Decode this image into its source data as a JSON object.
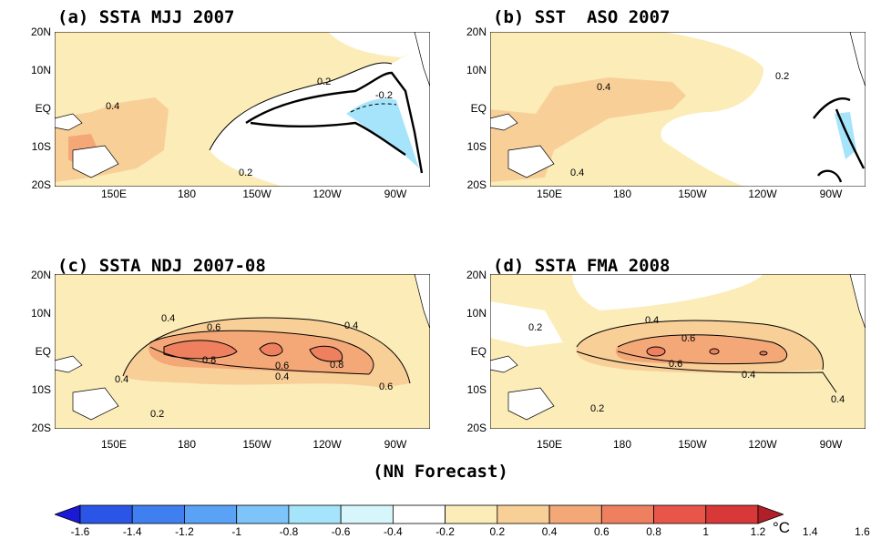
{
  "panels": [
    {
      "id": "a",
      "title": "(a) SSTA MJJ 2007",
      "contour_labels": [
        "0.2",
        "0.4",
        "-0.2",
        "0.2"
      ]
    },
    {
      "id": "b",
      "title": "(b) SST  ASO 2007",
      "contour_labels": [
        "0.4",
        "0.2",
        "0.4"
      ]
    },
    {
      "id": "c",
      "title": "(c) SSTA NDJ 2007-08",
      "contour_labels": [
        "0.4",
        "0.6",
        "0.4",
        "0.8",
        "0.6",
        "0.4",
        "0.8",
        "0.4",
        "0.6",
        "0.2"
      ]
    },
    {
      "id": "d",
      "title": "(d) SSTA FMA 2008",
      "contour_labels": [
        "0.2",
        "0.4",
        "0.6",
        "0.6",
        "0.4",
        "0.4",
        "0.2"
      ]
    }
  ],
  "axes": {
    "y_ticks": [
      "20N",
      "10N",
      "EQ",
      "10S",
      "20S"
    ],
    "x_ticks": [
      "150E",
      "180",
      "150W",
      "120W",
      "90W"
    ]
  },
  "caption": "(NN Forecast)",
  "colorbar": {
    "labels": [
      "-1.6",
      "-1.4",
      "-1.2",
      "-1",
      "-0.8",
      "-0.6",
      "-0.4",
      "-0.2",
      "0.2",
      "0.4",
      "0.6",
      "0.8",
      "1",
      "1.2",
      "1.4",
      "1.6"
    ],
    "unit": "°C",
    "colors": [
      "#1a1ad6",
      "#2b55e6",
      "#3f7ff0",
      "#5aa2f6",
      "#7cc4fa",
      "#a6e4fc",
      "#d6f6fb",
      "#ffffff",
      "#fbecb8",
      "#f9cf98",
      "#f4a878",
      "#ee8060",
      "#e8564a",
      "#d83838",
      "#b02028"
    ]
  },
  "colors": {
    "pos_light": "#fbecb8",
    "pos_mid": "#f9cf98",
    "pos_strong": "#f4a878",
    "neg_light": "#a6e4fc",
    "land": "#ffffff"
  }
}
